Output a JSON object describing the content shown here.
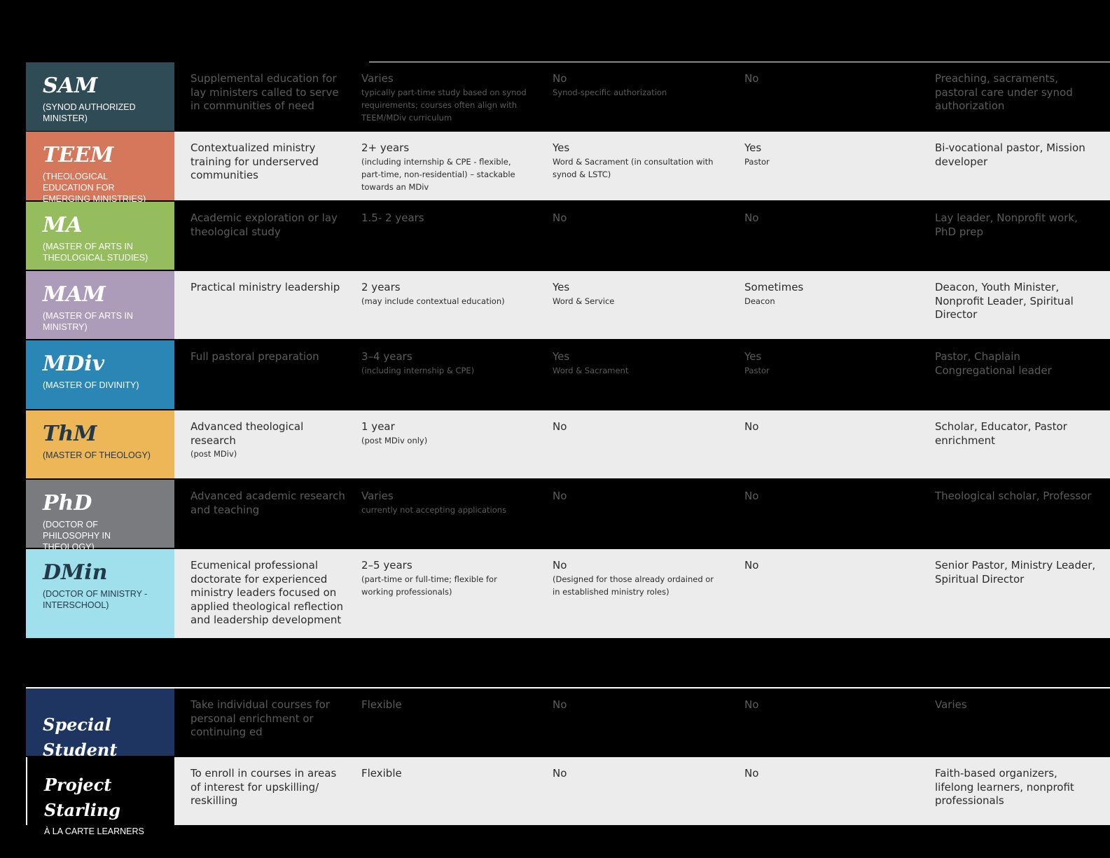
{
  "programs": [
    {
      "name": "SAM",
      "subtitle": "(SYNOD AUTHORIZED MINISTER)",
      "color": "#2f4b55",
      "text_color": "#ffffff",
      "cells": [
        {
          "main": "Supplemental education for lay ministers called to serve in communities of need"
        },
        {
          "main": "Varies",
          "sub": "typically part-time study based on synod requirements; courses often align with TEEM/MDiv curriculum"
        },
        {
          "main": "No",
          "sub": "Synod-specific authorization"
        },
        {
          "main": "No"
        },
        {
          "main": "Preaching, sacraments, pastoral care under synod authorization"
        }
      ]
    },
    {
      "name": "TEEM",
      "subtitle": "(THEOLOGICAL EDUCATION FOR EMERGING MINISTRIES)",
      "color": "#d4775b",
      "text_color": "#ffffff",
      "cells": [
        {
          "main": "Contextualized ministry training for underserved communities"
        },
        {
          "main": "2+ years",
          "sub": "(including internship & CPE - flexible, part-time, non-residential) – stackable towards an MDiv"
        },
        {
          "main": "Yes",
          "sub": "Word & Sacrament (in consultation with synod & LSTC)"
        },
        {
          "main": "Yes",
          "sub": "Pastor"
        },
        {
          "main": "Bi-vocational pastor, Mission developer"
        }
      ]
    },
    {
      "name": "MA",
      "subtitle": "(MASTER OF ARTS IN THEOLOGICAL STUDIES)",
      "color": "#96bd5d",
      "text_color": "#ffffff",
      "cells": [
        {
          "main": "Academic exploration or lay theological study"
        },
        {
          "main": "1.5- 2 years"
        },
        {
          "main": "No"
        },
        {
          "main": "No"
        },
        {
          "main": "Lay leader, Nonprofit work, PhD prep"
        }
      ]
    },
    {
      "name": "MAM",
      "subtitle": "(MASTER OF ARTS IN MINISTRY)",
      "color": "#ad9cb9",
      "text_color": "#ffffff",
      "cells": [
        {
          "main": "Practical ministry leadership"
        },
        {
          "main": "2 years",
          "sub": "(may include contextual education)"
        },
        {
          "main": "Yes",
          "sub": "Word & Service"
        },
        {
          "main": "Sometimes",
          "sub": "Deacon"
        },
        {
          "main": "Deacon, Youth Minister, Nonprofit Leader, Spiritual Director"
        }
      ]
    },
    {
      "name": "MDiv",
      "subtitle": "(MASTER OF DIVINITY)",
      "color": "#2a86b5",
      "text_color": "#ffffff",
      "cells": [
        {
          "main": "Full pastoral preparation"
        },
        {
          "main": "3–4 years",
          "sub": "(including internship & CPE)"
        },
        {
          "main": "Yes",
          "sub": "Word & Sacrament"
        },
        {
          "main": "Yes",
          "sub": "Pastor"
        },
        {
          "main": "Pastor, Chaplain Congregational leader"
        }
      ]
    },
    {
      "name": "ThM",
      "subtitle": "(MASTER OF THEOLOGY)",
      "color": "#edb657",
      "text_color": "#23394a",
      "cells": [
        {
          "main": "Advanced theological research",
          "sub": "(post MDiv)"
        },
        {
          "main": "1 year",
          "sub": "(post MDiv only)"
        },
        {
          "main": "No"
        },
        {
          "main": "No"
        },
        {
          "main": "Scholar, Educator, Pastor enrichment"
        }
      ]
    },
    {
      "name": "PhD",
      "subtitle": "(DOCTOR OF PHILOSOPHY IN THEOLOGY)",
      "color": "#7a7b7e",
      "text_color": "#ffffff",
      "cells": [
        {
          "main": "Advanced academic research and teaching"
        },
        {
          "main": "Varies",
          "sub": "currently not accepting applications"
        },
        {
          "main": "No"
        },
        {
          "main": "No"
        },
        {
          "main": "Theological scholar, Professor"
        }
      ]
    },
    {
      "name": "DMin",
      "subtitle": "(DOCTOR OF MINISTRY - INTERSCHOOL)",
      "color": "#9fe0ec",
      "text_color": "#23394a",
      "cells": [
        {
          "main": "Ecumenical professional doctorate for experienced ministry leaders focused on applied theological reflection and leadership development"
        },
        {
          "main": "2–5 years",
          "sub": "(part-time or full-time; flexible for working professionals)"
        },
        {
          "main": "No",
          "sub": "(Designed for those already ordained or in established ministry roles)"
        },
        {
          "main": "No"
        },
        {
          "main": "Senior Pastor, Ministry Leader, Spiritual Director"
        }
      ]
    }
  ],
  "other_programs": [
    {
      "name": "Special Student",
      "color": "#1e3561",
      "text_color": "#ffffff",
      "cells": [
        {
          "main": "Take individual courses for personal enrichment or continuing ed"
        },
        {
          "main": "Flexible"
        },
        {
          "main": "No"
        },
        {
          "main": "No"
        },
        {
          "main": "Varies"
        }
      ]
    },
    {
      "name": "Project Starling",
      "subtitle": "À LA CARTE LEARNERS",
      "color": "#000000",
      "text_color": "#ffffff",
      "cells": [
        {
          "main": "To enroll in courses in areas of interest for upskilling/ reskilling"
        },
        {
          "main": "Flexible"
        },
        {
          "main": "No"
        },
        {
          "main": "No"
        },
        {
          "main": "Faith-based organizers, lifelong learners, nonprofit professionals"
        }
      ]
    }
  ]
}
